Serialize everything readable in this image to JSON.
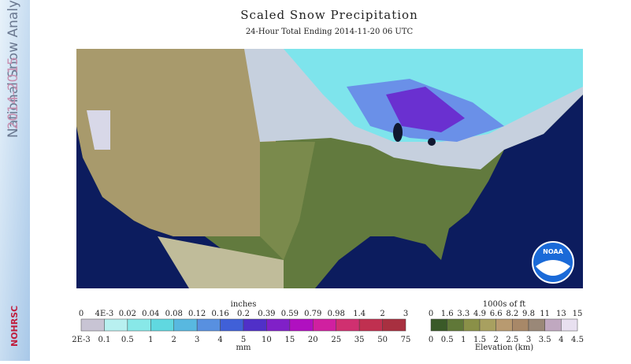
{
  "header": {
    "title": "Scaled Snow Precipitation",
    "subtitle": "24-Hour Total Ending 2014-11-20 06 UTC"
  },
  "sidebar": {
    "title": "National Snow Analysis",
    "years": "2014-2015",
    "agency": "NOHRSC"
  },
  "map": {
    "logo": "NOAA"
  },
  "precip_legend": {
    "top_unit": "inches",
    "bottom_unit": "mm",
    "top_labels": [
      "0",
      "4E-3",
      "0.02",
      "0.04",
      "0.08",
      "0.12",
      "0.16",
      "0.2",
      "0.39",
      "0.59",
      "0.79",
      "0.98",
      "1.4",
      "2",
      "3"
    ],
    "bottom_labels": [
      "2E-3",
      "0.1",
      "0.5",
      "1",
      "2",
      "3",
      "4",
      "5",
      "10",
      "15",
      "20",
      "25",
      "35",
      "50",
      "75"
    ],
    "colors": [
      "#c8c4d4",
      "#b8f0f0",
      "#88e8e8",
      "#60d8e0",
      "#58b8e0",
      "#5890e0",
      "#4060d8",
      "#5030c8",
      "#8020c8",
      "#b010c0",
      "#d020a0",
      "#d03070",
      "#c03050",
      "#a83040"
    ]
  },
  "elev_legend": {
    "top_unit": "1000s of ft",
    "bottom_unit": "Elevation (km)",
    "top_labels": [
      "0",
      "1.6",
      "3.3",
      "4.9",
      "6.6",
      "8.2",
      "9.8",
      "11",
      "13",
      "15"
    ],
    "bottom_labels": [
      "0",
      "0.5",
      "1",
      "1.5",
      "2",
      "2.5",
      "3",
      "3.5",
      "4",
      "4.5"
    ],
    "colors": [
      "#3a5a28",
      "#607838",
      "#8a9048",
      "#a8a060",
      "#b89a70",
      "#a88868",
      "#9a8878",
      "#c0a8c0",
      "#e8e0f0"
    ]
  }
}
